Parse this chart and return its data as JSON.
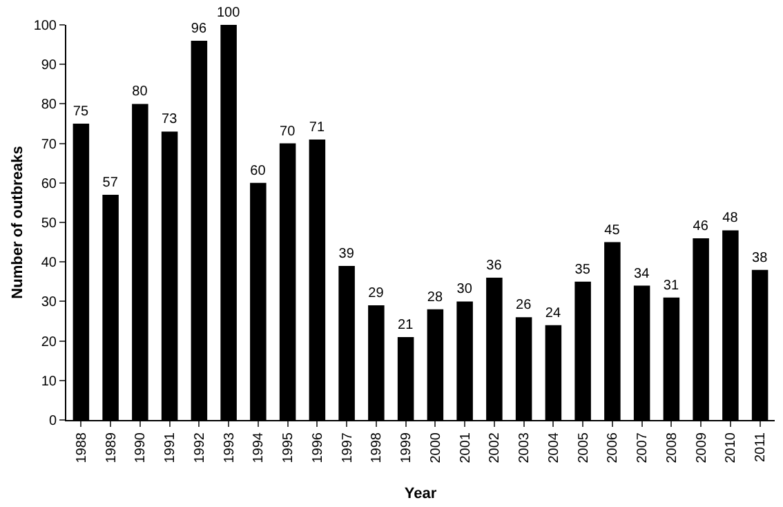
{
  "chart_data": {
    "type": "bar",
    "xlabel": "Year",
    "ylabel": "Number of outbreaks",
    "categories": [
      "1988",
      "1989",
      "1990",
      "1991",
      "1992",
      "1993",
      "1994",
      "1995",
      "1996",
      "1997",
      "1998",
      "1999",
      "2000",
      "2001",
      "2002",
      "2003",
      "2004",
      "2005",
      "2006",
      "2007",
      "2008",
      "2009",
      "2010",
      "2011"
    ],
    "values": [
      75,
      57,
      80,
      73,
      96,
      100,
      60,
      70,
      71,
      39,
      29,
      21,
      28,
      30,
      36,
      26,
      24,
      35,
      45,
      34,
      31,
      46,
      48,
      38
    ],
    "color": "#000000",
    "ylim": [
      0,
      100
    ],
    "yticks": [
      0,
      10,
      20,
      30,
      40,
      50,
      60,
      70,
      80,
      90,
      100
    ],
    "grid": false,
    "data_labels": true
  }
}
